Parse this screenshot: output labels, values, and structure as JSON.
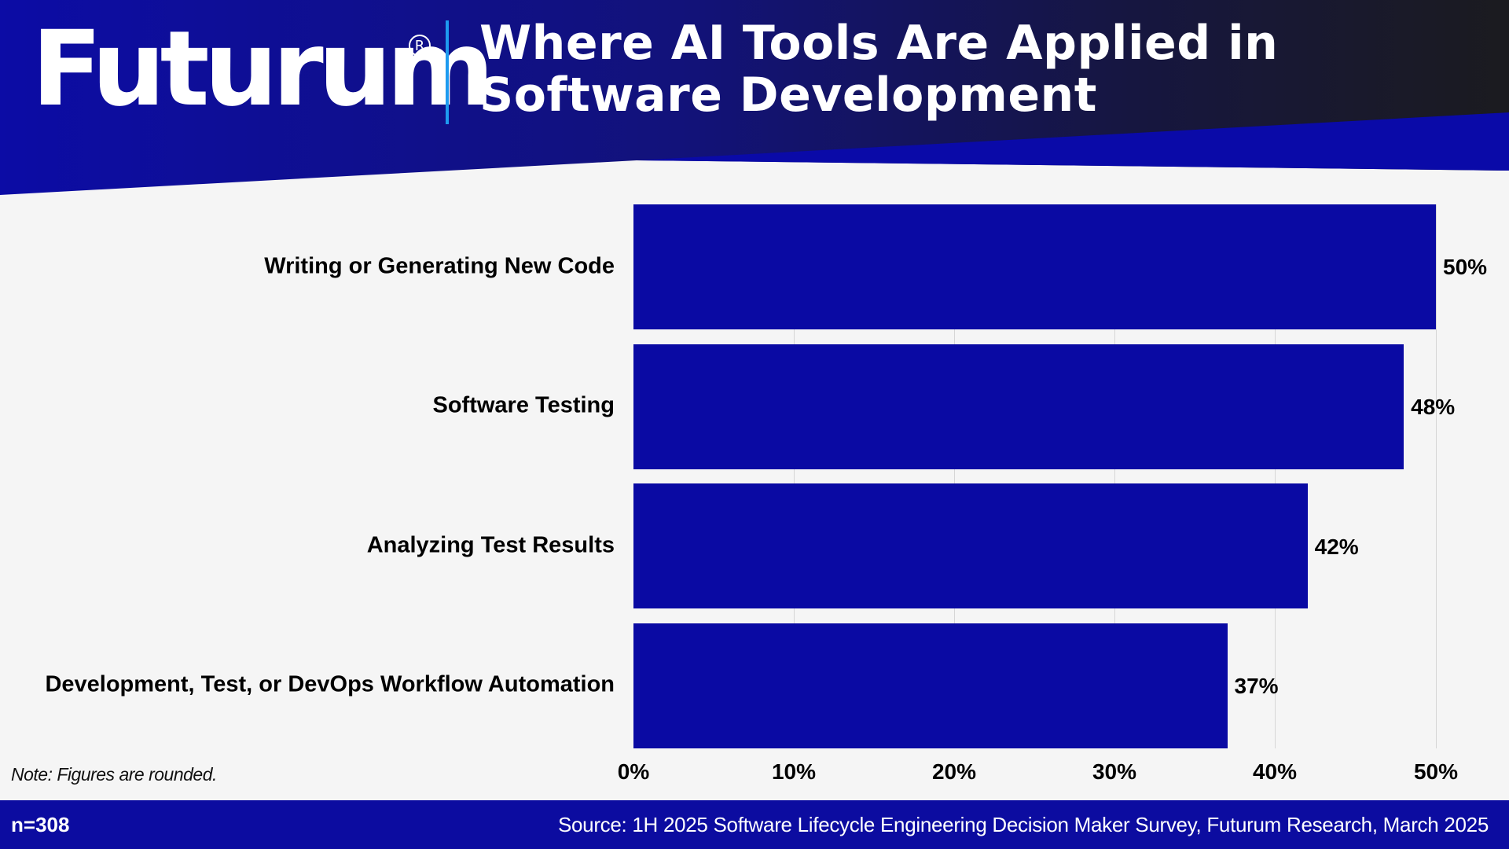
{
  "header": {
    "logo_text": "Futurum",
    "logo_mark": "R",
    "title_line1": "Where AI Tools Are Applied in",
    "title_line2": "Software Development"
  },
  "colors": {
    "bar": "#0a0aa3",
    "header_blue": "#0c0ca5",
    "header_dark": "#1a1a24",
    "divider": "#1e9bf0",
    "footer": "#0c0ca0",
    "background": "#f5f5f5",
    "gridline": "#d6d6d6"
  },
  "chart_data": {
    "type": "bar",
    "orientation": "horizontal",
    "title": "Where AI Tools Are Applied in Software Development",
    "categories": [
      "Writing or Generating New Code",
      "Software Testing",
      "Analyzing Test Results",
      "Development, Test, or DevOps Workflow Automation"
    ],
    "values": [
      50,
      48,
      42,
      37
    ],
    "value_labels": [
      "50%",
      "48%",
      "42%",
      "37%"
    ],
    "xlabel": "",
    "ylabel": "",
    "xlim": [
      0,
      50
    ],
    "x_ticks": [
      "0%",
      "10%",
      "20%",
      "30%",
      "40%",
      "50%"
    ],
    "grid": true,
    "legend": null,
    "note": "Note: Figures are rounded.",
    "sample_size": "n=308",
    "source": "Source: 1H 2025 Software Lifecycle Engineering Decision Maker Survey, Futurum Research, March 2025"
  },
  "footer": {
    "n": "n=308",
    "source": "Source: 1H 2025 Software Lifecycle Engineering Decision Maker Survey, Futurum Research, March 2025"
  },
  "note": "Note: Figures are rounded."
}
